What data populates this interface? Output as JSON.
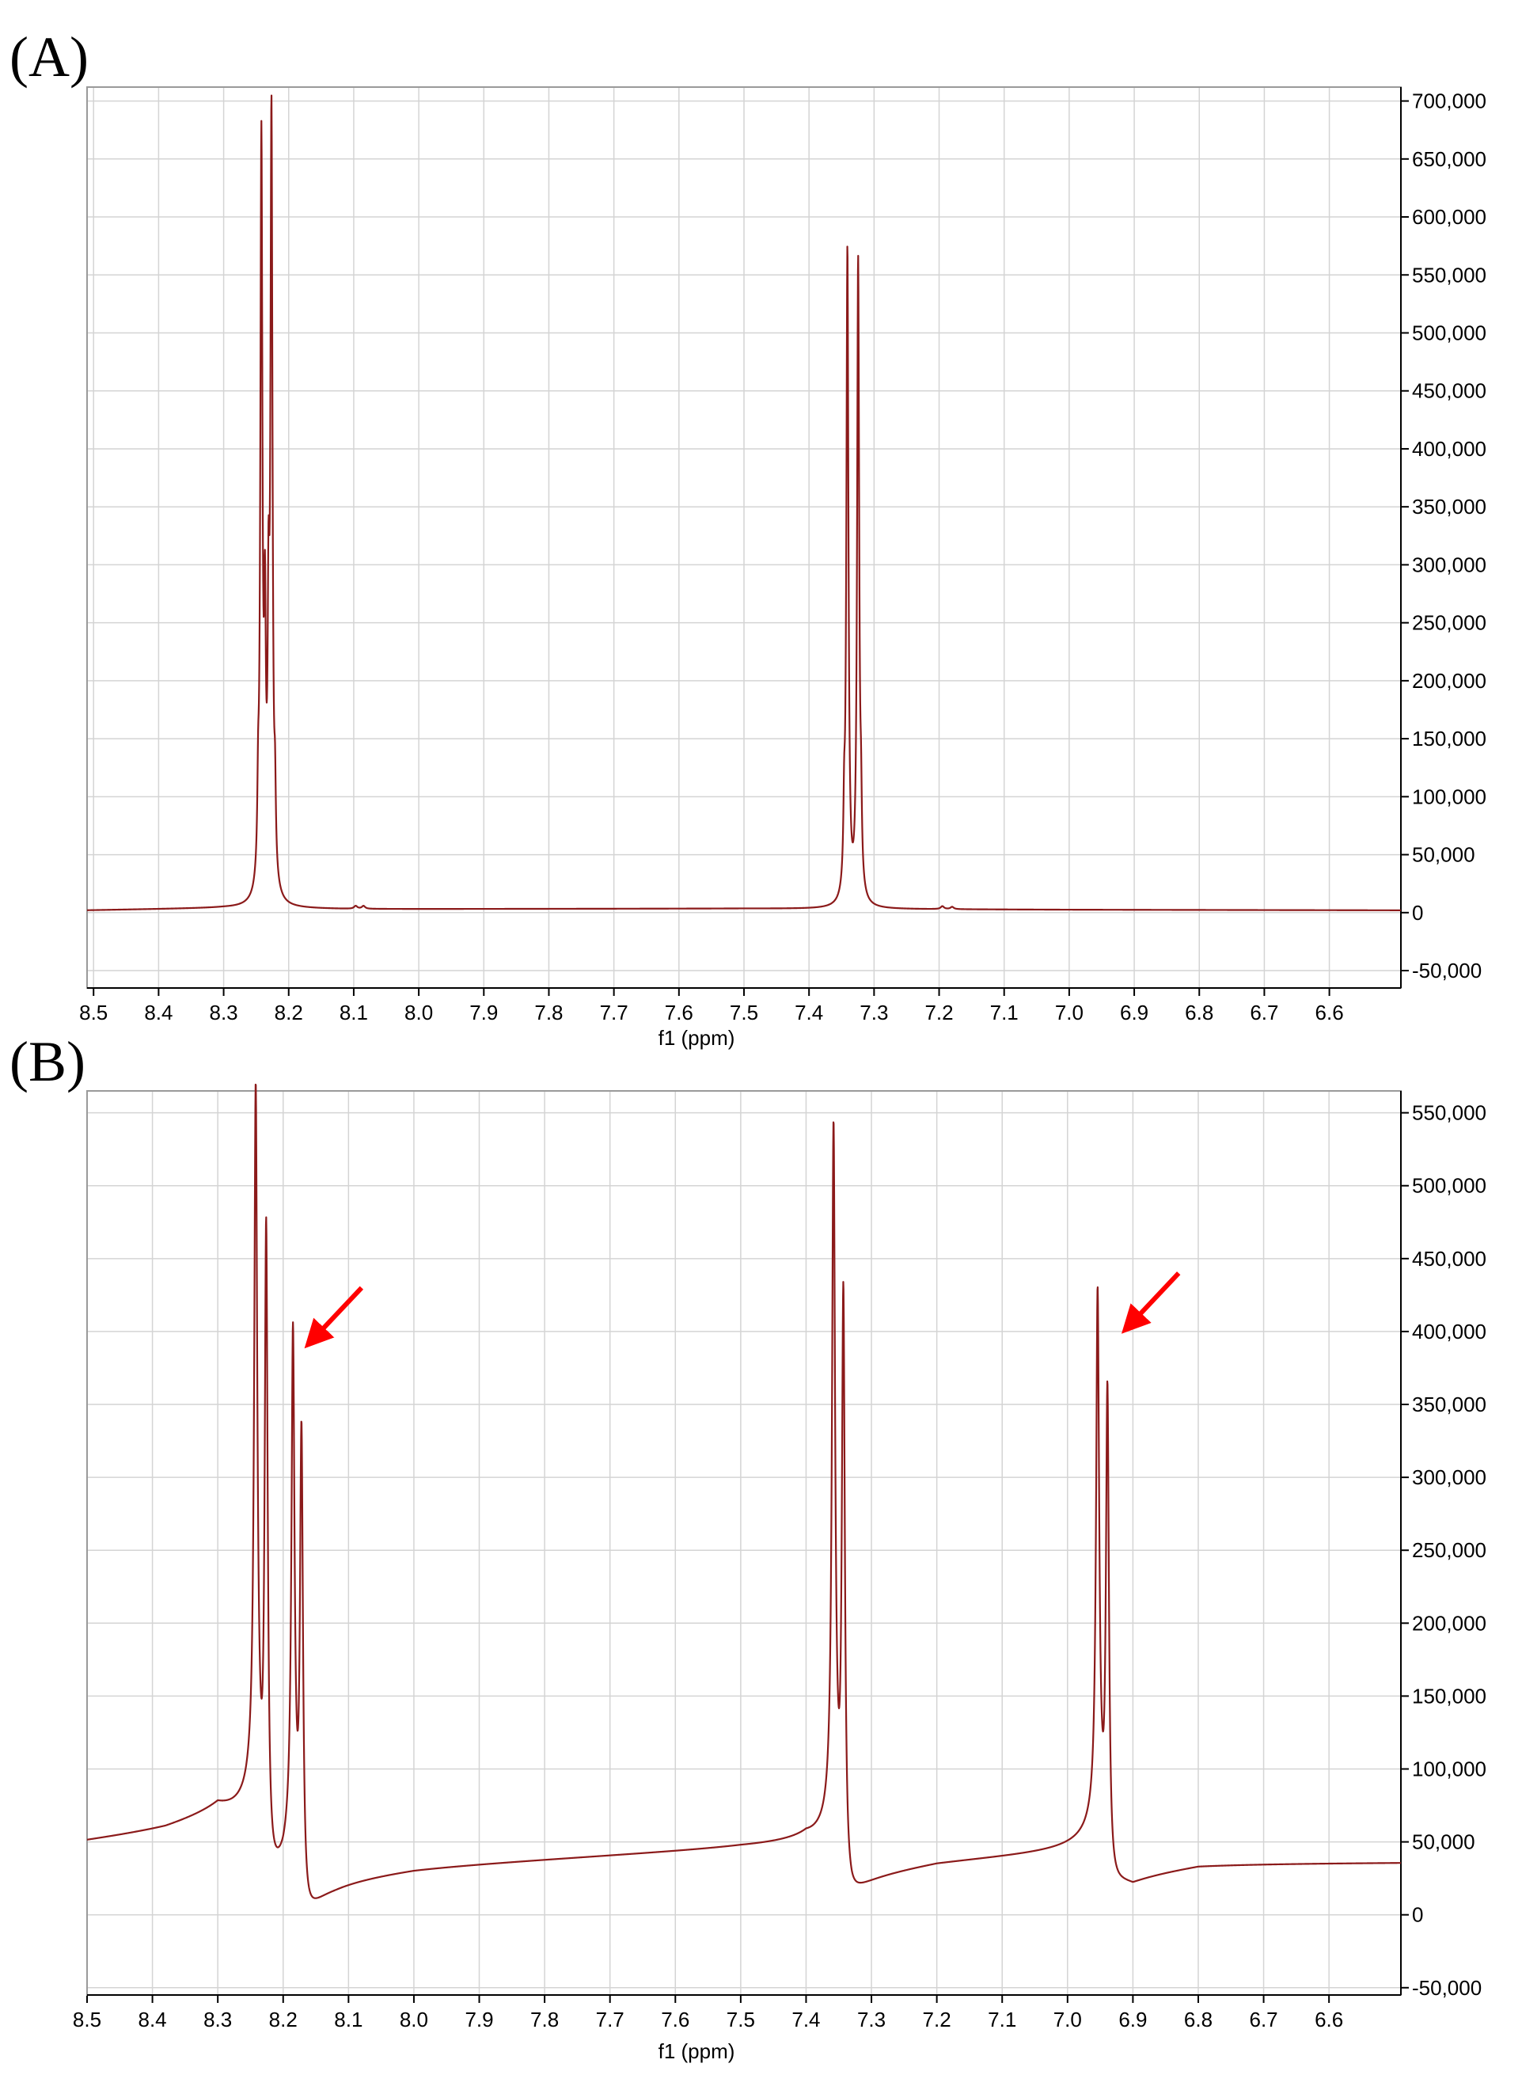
{
  "figure": {
    "line_color": "#8b1a1a",
    "arrow_color": "#ff0000"
  },
  "chart_data": [
    {
      "type": "line",
      "panel_label": "(A)",
      "xlabel": "f1 (ppm)",
      "ylabel": "",
      "xlim": [
        8.51,
        6.49
      ],
      "x_reversed": true,
      "ylim": [
        -65000,
        712000
      ],
      "x_ticks": [
        "8.5",
        "8.4",
        "8.3",
        "8.2",
        "8.1",
        "8.0",
        "7.9",
        "7.8",
        "7.7",
        "7.6",
        "7.5",
        "7.4",
        "7.3",
        "7.2",
        "7.1",
        "7.0",
        "6.9",
        "6.8",
        "6.7",
        "6.6"
      ],
      "y_ticks": [
        "700,000",
        "650,000",
        "600,000",
        "550,000",
        "500,000",
        "450,000",
        "400,000",
        "350,000",
        "300,000",
        "250,000",
        "200,000",
        "150,000",
        "100,000",
        "50,000",
        "0",
        "-50,000"
      ],
      "y_tick_values": [
        700000,
        650000,
        600000,
        550000,
        500000,
        450000,
        400000,
        350000,
        300000,
        250000,
        200000,
        150000,
        100000,
        50000,
        0,
        -50000
      ],
      "grid": true,
      "baseline": [
        [
          8.51,
          2000
        ],
        [
          8.3,
          4000
        ],
        [
          8.1,
          3000
        ],
        [
          7.5,
          3500
        ],
        [
          7.3,
          3000
        ],
        [
          7.0,
          2500
        ],
        [
          6.49,
          2000
        ]
      ],
      "peaks": [
        {
          "x": 8.247,
          "y": 60000,
          "w": 0.0014
        },
        {
          "x": 8.242,
          "y": 645000,
          "w": 0.0019
        },
        {
          "x": 8.2365,
          "y": 200000,
          "w": 0.0016
        },
        {
          "x": 8.231,
          "y": 200000,
          "w": 0.0016
        },
        {
          "x": 8.2265,
          "y": 662000,
          "w": 0.0019
        },
        {
          "x": 8.221,
          "y": 60000,
          "w": 0.0014
        },
        {
          "x": 8.097,
          "y": 2500,
          "w": 0.003
        },
        {
          "x": 8.085,
          "y": 2500,
          "w": 0.003
        },
        {
          "x": 7.346,
          "y": 55000,
          "w": 0.0014
        },
        {
          "x": 7.341,
          "y": 562000,
          "w": 0.0019
        },
        {
          "x": 7.3245,
          "y": 552000,
          "w": 0.0019
        },
        {
          "x": 7.32,
          "y": 55000,
          "w": 0.0014
        },
        {
          "x": 7.195,
          "y": 2500,
          "w": 0.003
        },
        {
          "x": 7.18,
          "y": 2000,
          "w": 0.003
        }
      ],
      "dispersive": [],
      "arrows": []
    },
    {
      "type": "line",
      "panel_label": "(B)",
      "xlabel": "f1 (ppm)",
      "ylabel": "",
      "xlim": [
        8.5,
        6.49
      ],
      "x_reversed": true,
      "ylim": [
        -55000,
        565000
      ],
      "x_ticks": [
        "8.5",
        "8.4",
        "8.3",
        "8.2",
        "8.1",
        "8.0",
        "7.9",
        "7.8",
        "7.7",
        "7.6",
        "7.5",
        "7.4",
        "7.3",
        "7.2",
        "7.1",
        "7.0",
        "6.9",
        "6.8",
        "6.7",
        "6.6"
      ],
      "y_ticks": [
        "550,000",
        "500,000",
        "450,000",
        "400,000",
        "350,000",
        "300,000",
        "250,000",
        "200,000",
        "150,000",
        "100,000",
        "50,000",
        "0",
        "-50,000"
      ],
      "y_tick_values": [
        550000,
        500000,
        450000,
        400000,
        350000,
        300000,
        250000,
        200000,
        150000,
        100000,
        50000,
        0,
        -50000
      ],
      "grid": true,
      "baseline": [
        [
          8.5,
          46000
        ],
        [
          8.38,
          52000
        ],
        [
          8.3,
          60000
        ],
        [
          8.2,
          28000
        ],
        [
          8.12,
          30000
        ],
        [
          8.0,
          35000
        ],
        [
          7.5,
          45000
        ],
        [
          7.4,
          46000
        ],
        [
          7.33,
          30000
        ],
        [
          7.2,
          38000
        ],
        [
          7.0,
          43000
        ],
        [
          6.95,
          44000
        ],
        [
          6.9,
          32000
        ],
        [
          6.8,
          38000
        ],
        [
          6.49,
          38000
        ]
      ],
      "peaks": [
        {
          "x": 8.242,
          "y": 470000,
          "w": 0.0028
        },
        {
          "x": 8.226,
          "y": 448000,
          "w": 0.0028
        },
        {
          "x": 8.185,
          "y": 345000,
          "w": 0.0028
        },
        {
          "x": 8.172,
          "y": 330000,
          "w": 0.0028
        },
        {
          "x": 7.358,
          "y": 468000,
          "w": 0.0028
        },
        {
          "x": 7.343,
          "y": 412000,
          "w": 0.0028
        },
        {
          "x": 6.954,
          "y": 355000,
          "w": 0.0028
        },
        {
          "x": 6.939,
          "y": 338000,
          "w": 0.0028
        }
      ],
      "dispersive": [
        {
          "x": 8.234,
          "a": 1800,
          "s": 0.01
        },
        {
          "x": 8.178,
          "a": 1500,
          "s": 0.01
        },
        {
          "x": 7.35,
          "a": 1400,
          "s": 0.01
        },
        {
          "x": 6.946,
          "a": 1200,
          "s": 0.01
        }
      ],
      "arrows": [
        {
          "x1": 8.08,
          "y1": 430000,
          "x2": 8.16,
          "y2": 392000
        },
        {
          "x1": 6.83,
          "y1": 440000,
          "x2": 6.91,
          "y2": 402000
        }
      ]
    }
  ]
}
